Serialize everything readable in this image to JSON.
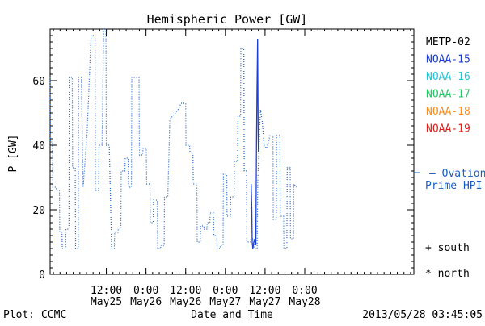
{
  "chart_data": {
    "type": "line",
    "title": "Hemispheric Power [GW]",
    "xlabel": "Date and Time",
    "ylabel": "P [GW]",
    "ylim": [
      0,
      76
    ],
    "xlim": [
      -5.0,
      105.0
    ],
    "x_unit": "hours since 2013/05/25 00:00",
    "yticks": [
      0,
      20,
      40,
      60
    ],
    "xticks": [
      {
        "x": 12,
        "time": "12:00",
        "date": "May25"
      },
      {
        "x": 24,
        "time": "0:00",
        "date": "May26"
      },
      {
        "x": 36,
        "time": "12:00",
        "date": "May26"
      },
      {
        "x": 48,
        "time": "0:00",
        "date": "May27"
      },
      {
        "x": 60,
        "time": "12:00",
        "date": "May27"
      },
      {
        "x": 72,
        "time": "0:00",
        "date": "May28"
      }
    ],
    "legend": [
      "METP-02",
      "NOAA-15",
      "NOAA-16",
      "NOAA-17",
      "NOAA-18",
      "NOAA-19"
    ],
    "legend_colors": [
      "#000000",
      "#1a3fd8",
      "#19c8dc",
      "#1ccb62",
      "#ff8c1a",
      "#e0221b"
    ],
    "legend_placement": "right",
    "ovation": {
      "label1": "— Ovation",
      "label2": "Prime HPI",
      "value": 32,
      "color": "#1a5fc8"
    },
    "markers": {
      "south": "+ south",
      "north": "* north"
    },
    "series": [
      {
        "color": "#1a5fc8",
        "style": "dotted",
        "points": [
          [
            -5.0,
            61
          ],
          [
            -4.9,
            41
          ],
          [
            -4.3,
            41
          ],
          [
            -4.2,
            27
          ],
          [
            -3.2,
            27
          ],
          [
            -3.1,
            26
          ],
          [
            -2.2,
            26
          ],
          [
            -2.1,
            13
          ],
          [
            -1.4,
            13
          ],
          [
            -1.3,
            8
          ],
          [
            -0.3,
            8
          ],
          [
            -0.2,
            14
          ],
          [
            0.7,
            14
          ],
          [
            0.8,
            61
          ],
          [
            1.7,
            61
          ],
          [
            1.8,
            33
          ],
          [
            2.6,
            33
          ],
          [
            2.7,
            8
          ],
          [
            3.5,
            8
          ],
          [
            3.6,
            61
          ],
          [
            4.4,
            61
          ],
          [
            5.0,
            27
          ],
          [
            6.2,
            44
          ],
          [
            7.4,
            74
          ],
          [
            8.6,
            74
          ],
          [
            8.7,
            26
          ],
          [
            9.7,
            26
          ],
          [
            9.8,
            40
          ],
          [
            10.7,
            40
          ],
          [
            11.2,
            76
          ],
          [
            11.9,
            76
          ],
          [
            12.0,
            40
          ],
          [
            12.9,
            40
          ],
          [
            13.6,
            8
          ],
          [
            14.4,
            8
          ],
          [
            14.5,
            13
          ],
          [
            15.5,
            13
          ],
          [
            15.6,
            14
          ],
          [
            16.4,
            14
          ],
          [
            16.5,
            32
          ],
          [
            17.6,
            32
          ],
          [
            17.7,
            36
          ],
          [
            18.6,
            36
          ],
          [
            18.7,
            27
          ],
          [
            19.6,
            27
          ],
          [
            19.7,
            61
          ],
          [
            21.9,
            61
          ],
          [
            22.0,
            37
          ],
          [
            23.0,
            37
          ],
          [
            23.1,
            39
          ],
          [
            24.1,
            39
          ],
          [
            24.2,
            28
          ],
          [
            25.2,
            28
          ],
          [
            25.3,
            16
          ],
          [
            26.2,
            16
          ],
          [
            26.3,
            23
          ],
          [
            27.4,
            23
          ],
          [
            27.5,
            8
          ],
          [
            28.4,
            8
          ],
          [
            28.5,
            9
          ],
          [
            29.5,
            9
          ],
          [
            29.6,
            24
          ],
          [
            30.6,
            24
          ],
          [
            31.2,
            48
          ],
          [
            33.7,
            51
          ],
          [
            34.6,
            53
          ],
          [
            36.0,
            53
          ],
          [
            36.1,
            40
          ],
          [
            37.2,
            40
          ],
          [
            37.3,
            38
          ],
          [
            38.2,
            38
          ],
          [
            38.3,
            28
          ],
          [
            39.4,
            28
          ],
          [
            39.5,
            10
          ],
          [
            40.4,
            10
          ],
          [
            40.5,
            15
          ],
          [
            41.5,
            15
          ],
          [
            41.6,
            14
          ],
          [
            42.4,
            14
          ],
          [
            42.5,
            16
          ],
          [
            43.3,
            16
          ],
          [
            43.4,
            19
          ],
          [
            44.4,
            19
          ],
          [
            44.5,
            12
          ],
          [
            45.4,
            12
          ],
          [
            45.5,
            8
          ],
          [
            46.4,
            8
          ],
          [
            46.5,
            9
          ],
          [
            47.3,
            9
          ],
          [
            47.4,
            31
          ],
          [
            48.4,
            31
          ],
          [
            48.5,
            18
          ],
          [
            49.5,
            18
          ],
          [
            49.6,
            24
          ],
          [
            50.6,
            24
          ],
          [
            50.7,
            35
          ],
          [
            51.7,
            35
          ],
          [
            51.8,
            49
          ],
          [
            52.6,
            49
          ],
          [
            52.7,
            70
          ],
          [
            53.6,
            70
          ],
          [
            53.7,
            32
          ],
          [
            54.4,
            32
          ],
          [
            54.5,
            10
          ],
          [
            55.6,
            10
          ],
          [
            55.7,
            11
          ],
          [
            56.7,
            11
          ],
          [
            56.8,
            8
          ],
          [
            57.6,
            8
          ],
          [
            57.8,
            29
          ],
          [
            58.2,
            40
          ],
          [
            58.6,
            51
          ],
          [
            59.2,
            47
          ],
          [
            59.7,
            40
          ],
          [
            60.5,
            39
          ],
          [
            61.5,
            43
          ],
          [
            62.4,
            43
          ],
          [
            62.5,
            17
          ],
          [
            63.4,
            17
          ],
          [
            63.5,
            43
          ],
          [
            64.5,
            43
          ],
          [
            64.6,
            18
          ],
          [
            65.6,
            18
          ],
          [
            65.7,
            8
          ],
          [
            66.6,
            8
          ],
          [
            66.7,
            33
          ],
          [
            67.6,
            33
          ],
          [
            67.7,
            11
          ],
          [
            68.6,
            11
          ],
          [
            68.7,
            28
          ],
          [
            69.5,
            27
          ]
        ]
      },
      {
        "color": "#1a3fd8",
        "style": "solid",
        "points": [
          [
            55.8,
            28
          ],
          [
            56.0,
            20
          ],
          [
            56.1,
            10
          ],
          [
            56.3,
            8
          ],
          [
            56.6,
            10
          ],
          [
            56.9,
            11
          ],
          [
            57.2,
            9
          ],
          [
            57.4,
            40
          ],
          [
            57.55,
            56
          ],
          [
            57.75,
            73
          ],
          [
            57.9,
            46
          ],
          [
            58.0,
            38
          ]
        ]
      }
    ]
  },
  "footer": {
    "plot_credit": "Plot: CCMC",
    "timestamp": "2013/05/28 03:45:05"
  }
}
